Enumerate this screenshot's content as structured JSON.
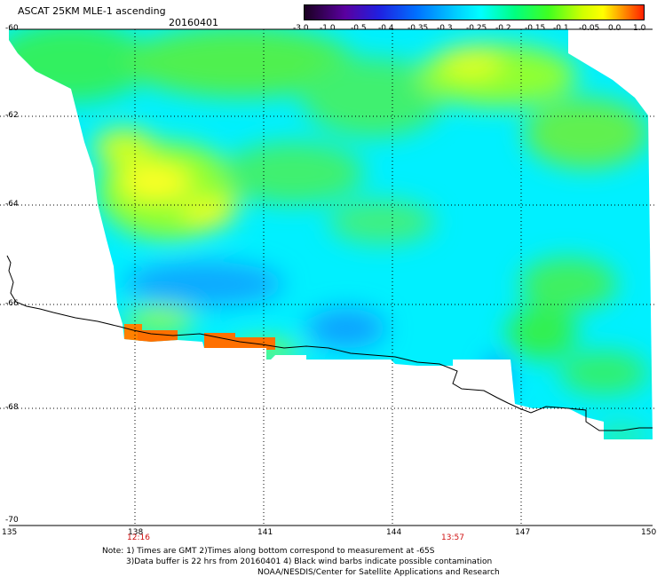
{
  "title": "ASCAT 25KM MLE-1 ascending",
  "date": "20160401",
  "colorbar": {
    "tick_labels": [
      "-3.0",
      "-1.0",
      "-0.5",
      "-0.4",
      "-0.35",
      "-0.3",
      "-0.25",
      "-0.2",
      "-0.15",
      "-0.1",
      "-0.05",
      "0.0",
      "1.0"
    ],
    "colors": [
      "#2a0030",
      "#5a0090",
      "#3010d0",
      "#0050ff",
      "#0090ff",
      "#00c8ff",
      "#00ffff",
      "#00ff90",
      "#50ff30",
      "#b0ff20",
      "#ffff00",
      "#ffb000",
      "#ff4000"
    ]
  },
  "lat_labels": [
    "-60",
    "-62",
    "-64",
    "-66",
    "-68",
    "-70"
  ],
  "lon_labels": [
    "135",
    "138",
    "141",
    "144",
    "147",
    "150"
  ],
  "time_labels": [
    "12:16",
    "13:57"
  ],
  "notes": [
    "Note: 1) Times are GMT 2)Times along bottom correspond to measurement at -65S",
    "3)Data buffer is 22 hrs from 20160401 4) Black wind barbs indicate possible contamination",
    "NOAA/NESDIS/Center for Satellite Applications and Research"
  ]
}
